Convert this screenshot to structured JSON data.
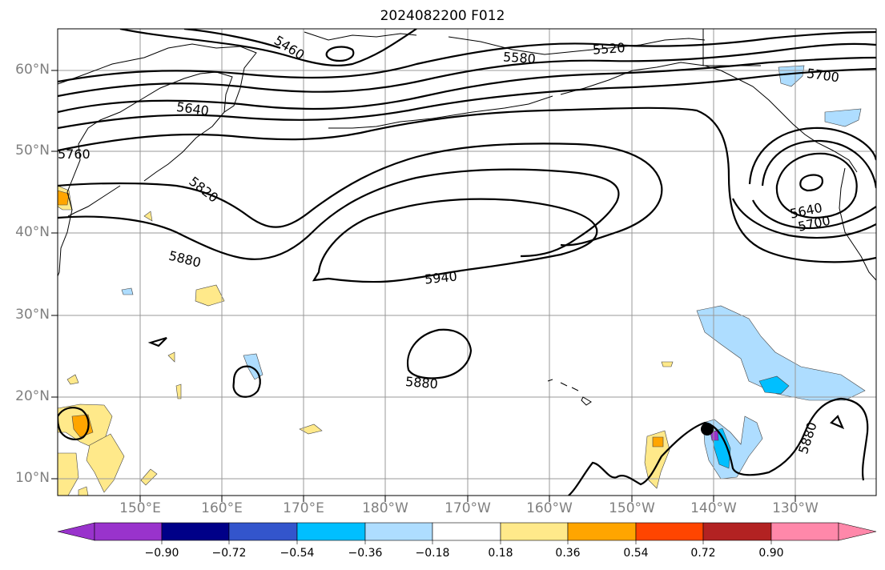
{
  "title": "2024082200 F012",
  "lat_labels": [
    "60°N",
    "50°N",
    "40°N",
    "30°N",
    "20°N",
    "10°N"
  ],
  "lon_labels": [
    "150°E",
    "160°E",
    "170°E",
    "180°W",
    "170°W",
    "160°W",
    "150°W",
    "140°W",
    "130°W"
  ],
  "contour_labels": [
    "5460",
    "5520",
    "5580",
    "5700",
    "5640",
    "5760",
    "5820",
    "5880",
    "5940",
    "5880",
    "5880",
    "5640",
    "5700"
  ],
  "colorbar": {
    "ticks": [
      "−0.90",
      "−0.72",
      "−0.54",
      "−0.36",
      "−0.18",
      "0.18",
      "0.36",
      "0.54",
      "0.72",
      "0.90"
    ],
    "colors": [
      "#9933cc",
      "#000088",
      "#3355cc",
      "#00bfff",
      "#aeddff",
      "#ffffff",
      "#ffe98a",
      "#ffa500",
      "#ff4500",
      "#b22222",
      "#ff88aa"
    ]
  }
}
